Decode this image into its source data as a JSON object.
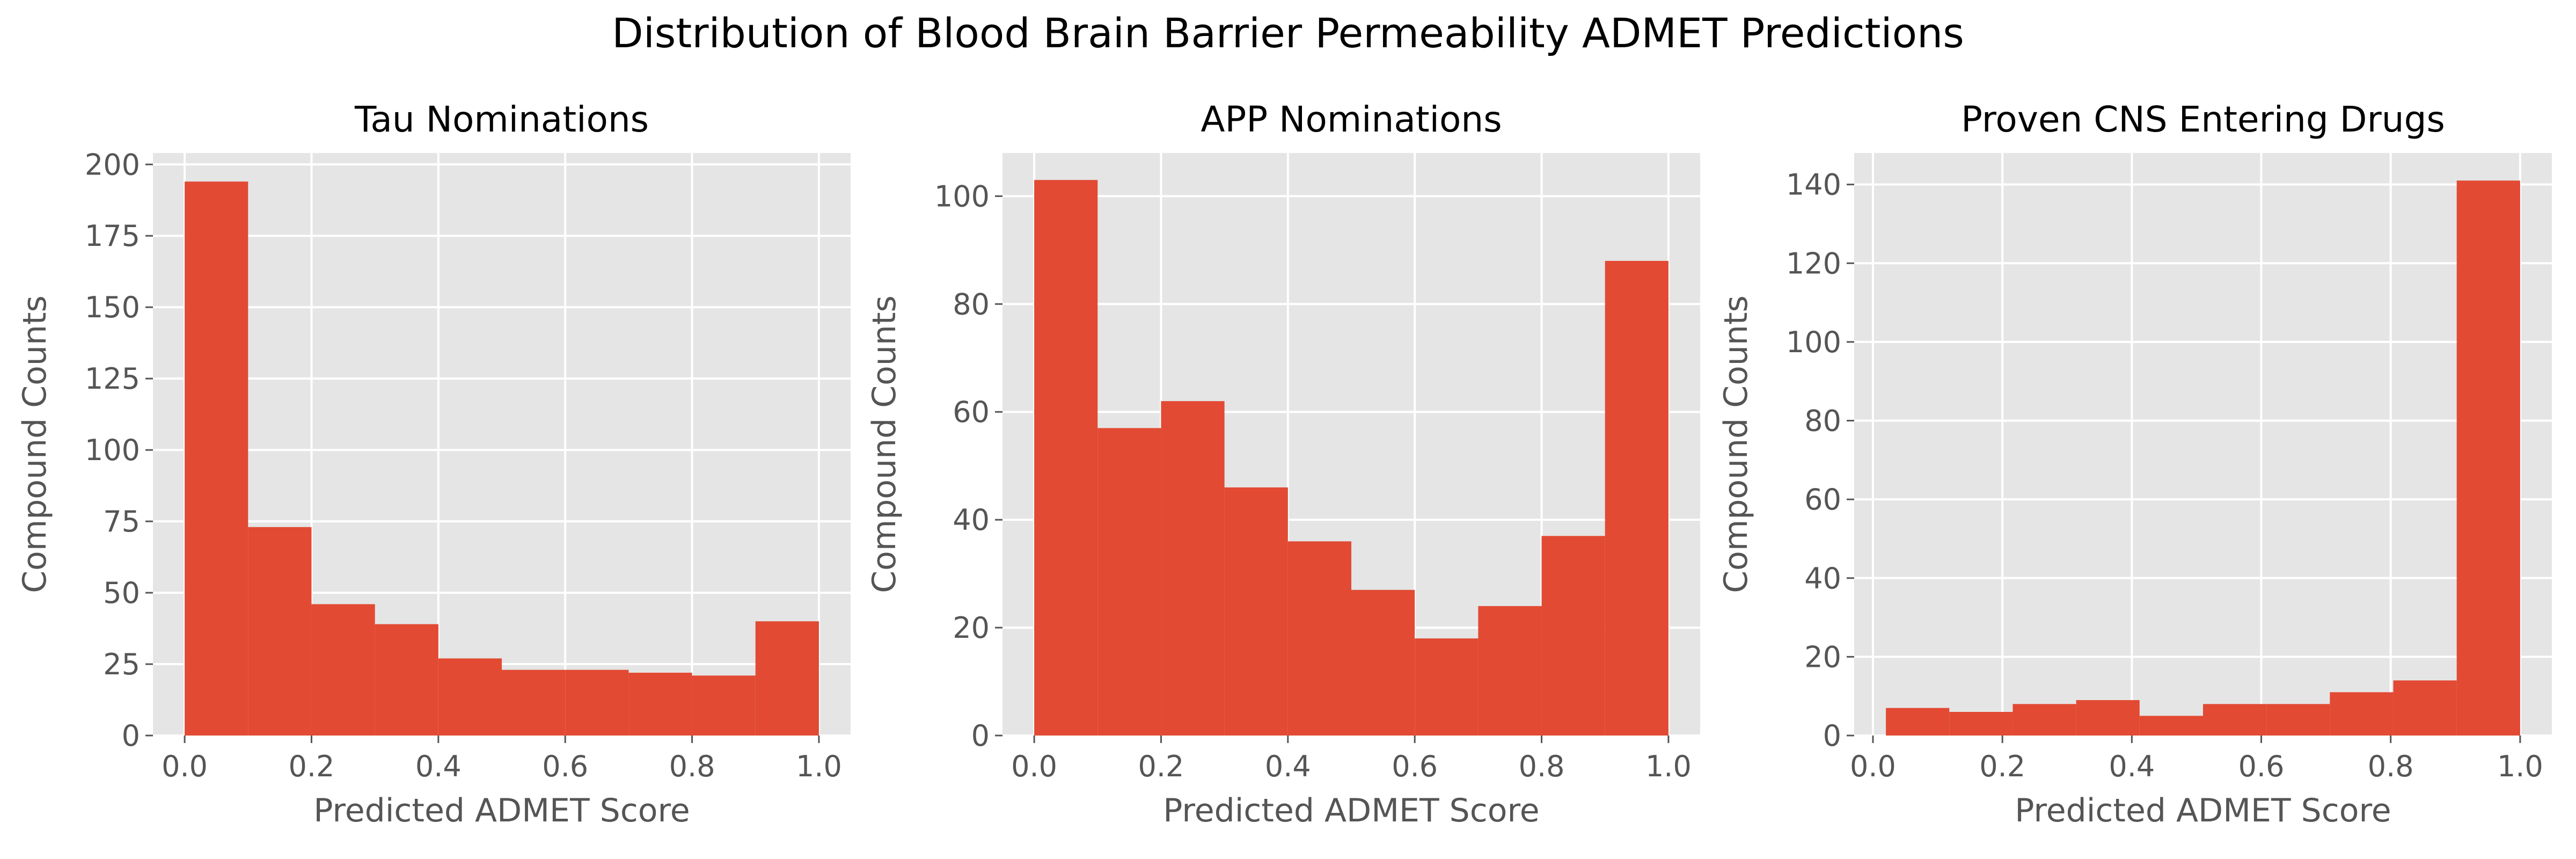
{
  "figure": {
    "title": "Distribution of Blood Brain Barrier Permeability ADMET Predictions"
  },
  "colors": {
    "bar": "#e24a33",
    "plot_background": "#e5e5e5",
    "grid": "#ffffff",
    "tick_text": "#555555"
  },
  "chart_data": [
    {
      "type": "bar",
      "title": "Tau Nominations",
      "xlabel": "Predicted ADMET Score",
      "ylabel": "Compound Counts",
      "bin_edges": [
        0.0,
        0.1,
        0.2,
        0.3,
        0.4,
        0.5,
        0.6,
        0.7,
        0.8,
        0.9,
        1.0
      ],
      "values": [
        194,
        73,
        46,
        39,
        27,
        23,
        23,
        22,
        21,
        40
      ],
      "xlim": [
        -0.05,
        1.05
      ],
      "ylim": [
        0,
        204
      ],
      "xticks": [
        0.0,
        0.2,
        0.4,
        0.6,
        0.8,
        1.0
      ],
      "xtick_labels": [
        "0.0",
        "0.2",
        "0.4",
        "0.6",
        "0.8",
        "1.0"
      ],
      "yticks": [
        0,
        25,
        50,
        75,
        100,
        125,
        150,
        175,
        200
      ],
      "ytick_labels": [
        "0",
        "25",
        "50",
        "75",
        "100",
        "125",
        "150",
        "175",
        "200"
      ],
      "grid": true
    },
    {
      "type": "bar",
      "title": "APP Nominations",
      "xlabel": "Predicted ADMET Score",
      "ylabel": "Compound Counts",
      "bin_edges": [
        0.0,
        0.1,
        0.2,
        0.3,
        0.4,
        0.5,
        0.6,
        0.7,
        0.8,
        0.9,
        1.0
      ],
      "values": [
        103,
        57,
        62,
        46,
        36,
        27,
        18,
        24,
        37,
        88
      ],
      "xlim": [
        -0.05,
        1.05
      ],
      "ylim": [
        0,
        108
      ],
      "xticks": [
        0.0,
        0.2,
        0.4,
        0.6,
        0.8,
        1.0
      ],
      "xtick_labels": [
        "0.0",
        "0.2",
        "0.4",
        "0.6",
        "0.8",
        "1.0"
      ],
      "yticks": [
        0,
        20,
        40,
        60,
        80,
        100
      ],
      "ytick_labels": [
        "0",
        "20",
        "40",
        "60",
        "80",
        "100"
      ],
      "grid": true
    },
    {
      "type": "bar",
      "title": "Proven CNS Entering Drugs",
      "xlabel": "Predicted ADMET Score",
      "ylabel": "Compound Counts",
      "bin_edges": [
        0.02,
        0.118,
        0.216,
        0.314,
        0.412,
        0.51,
        0.608,
        0.706,
        0.804,
        0.902,
        1.0
      ],
      "values": [
        7,
        6,
        8,
        9,
        5,
        8,
        8,
        11,
        14,
        141
      ],
      "xlim": [
        -0.029,
        1.049
      ],
      "ylim": [
        0,
        148
      ],
      "xticks": [
        0.0,
        0.2,
        0.4,
        0.6,
        0.8,
        1.0
      ],
      "xtick_labels": [
        "0.0",
        "0.2",
        "0.4",
        "0.6",
        "0.8",
        "1.0"
      ],
      "yticks": [
        0,
        20,
        40,
        60,
        80,
        100,
        120,
        140
      ],
      "ytick_labels": [
        "0",
        "20",
        "40",
        "60",
        "80",
        "100",
        "120",
        "140"
      ],
      "grid": true
    }
  ]
}
